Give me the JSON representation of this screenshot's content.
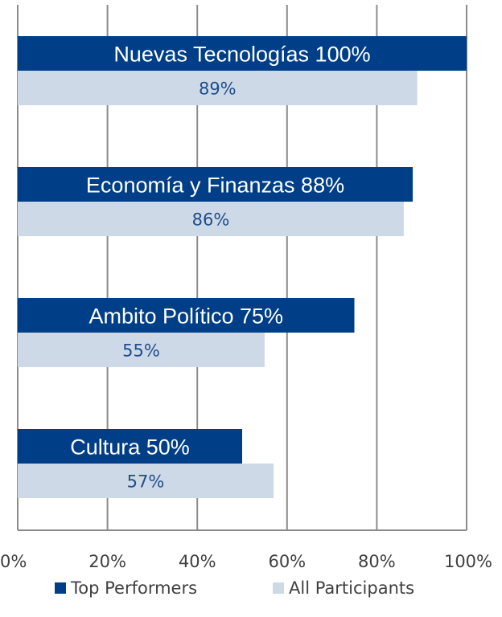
{
  "chart_data": {
    "type": "bar",
    "orientation": "horizontal",
    "categories": [
      "Nuevas Tecnologías",
      "Economía y Finanzas",
      "Ambito Político",
      "Cultura"
    ],
    "series": [
      {
        "name": "Top Performers",
        "values": [
          100,
          88,
          75,
          50
        ],
        "labels": [
          "Nuevas Tecnologías 100%",
          "Economía y Finanzas 88%",
          "Ambito Político 75%",
          "Cultura 50%"
        ],
        "color": "#003f87"
      },
      {
        "name": "All Participants",
        "values": [
          89,
          86,
          55,
          57
        ],
        "labels": [
          "89%",
          "86%",
          "55%",
          "57%"
        ],
        "color": "#cdd9e6"
      }
    ],
    "xlim": [
      0,
      100
    ],
    "xticks": [
      "0%",
      "20%",
      "40%",
      "60%",
      "80%",
      "100%"
    ],
    "grid": "vertical",
    "legend_position": "bottom",
    "title": "",
    "xlabel": "",
    "ylabel": ""
  },
  "colors": {
    "top_performers": "#003f87",
    "all_participants": "#cdd9e6",
    "all_label_text": "#1f4e8c",
    "grid": "#8c8c8c"
  }
}
